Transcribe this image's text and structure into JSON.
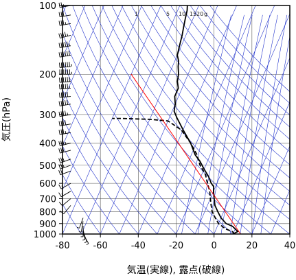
{
  "chart_data": {
    "type": "line",
    "title": "",
    "xlabel": "気温(実線), 露点(破線)",
    "ylabel": "気圧(hPa)",
    "xlim": [
      -80,
      40
    ],
    "ylim": [
      1000,
      100
    ],
    "y_scale": "log",
    "xticks": [
      "-80",
      "-60",
      "-40",
      "-20",
      "0",
      "20",
      "40"
    ],
    "yticks": [
      "100",
      "200",
      "300",
      "400",
      "500",
      "600",
      "700",
      "800",
      "900",
      "1000"
    ],
    "mixing_ratio_labels": [
      "1",
      "5",
      "10",
      "15",
      "20",
      "g"
    ],
    "grid": true,
    "series": [
      {
        "kind": "temperature",
        "line_style": "solid",
        "color": "#000000",
        "points": [
          [
            10,
            1000
          ],
          [
            12,
            975
          ],
          [
            10,
            950
          ],
          [
            8,
            925
          ],
          [
            4,
            900
          ],
          [
            0,
            850
          ],
          [
            -3,
            800
          ],
          [
            -6,
            750
          ],
          [
            -8,
            700
          ],
          [
            -10,
            650
          ],
          [
            -11,
            620
          ],
          [
            -13,
            600
          ],
          [
            -16,
            560
          ],
          [
            -20,
            520
          ],
          [
            -24,
            480
          ],
          [
            -28,
            450
          ],
          [
            -33,
            400
          ],
          [
            -40,
            350
          ],
          [
            -46,
            310
          ],
          [
            -49,
            290
          ],
          [
            -50,
            270
          ],
          [
            -52,
            250
          ],
          [
            -52,
            230
          ],
          [
            -54,
            215
          ],
          [
            -55,
            200
          ],
          [
            -57,
            185
          ],
          [
            -58,
            175
          ],
          [
            -60,
            165
          ],
          [
            -61,
            150
          ],
          [
            -62,
            135
          ],
          [
            -63,
            125
          ],
          [
            -64,
            115
          ],
          [
            -65,
            105
          ],
          [
            -66,
            100
          ]
        ]
      },
      {
        "kind": "dewpoint",
        "line_style": "dashed",
        "color": "#000000",
        "points": [
          [
            11,
            1000
          ],
          [
            9,
            975
          ],
          [
            5,
            950
          ],
          [
            0,
            900
          ],
          [
            -3,
            850
          ],
          [
            -6,
            800
          ],
          [
            -8,
            750
          ],
          [
            -10,
            700
          ],
          [
            -12,
            650
          ],
          [
            -15,
            600
          ],
          [
            -18,
            550
          ],
          [
            -23,
            500
          ],
          [
            -27,
            450
          ],
          [
            -33,
            400
          ],
          [
            -41,
            350
          ],
          [
            -50,
            320
          ],
          [
            -60,
            315
          ],
          [
            -75,
            312
          ],
          [
            -80,
            312
          ]
        ]
      },
      {
        "kind": "parcel",
        "line_style": "solid",
        "color": "#ff0000",
        "points": [
          [
            14,
            1000
          ],
          [
            -80,
            200
          ]
        ]
      }
    ],
    "dry_adiabat_temps_at_1000": [
      -70,
      -60,
      -50,
      -40,
      -30,
      -20,
      -10,
      0,
      10,
      20,
      30,
      40,
      50,
      60,
      70,
      80,
      90,
      100,
      110,
      120,
      130,
      140,
      150
    ],
    "mixing_ratio_g_per_kg": [
      1,
      2,
      3,
      5,
      7,
      10,
      15,
      20
    ],
    "wind_barbs": [
      {
        "p": 100,
        "dir": 260,
        "speed": 25
      },
      {
        "p": 110,
        "dir": 260,
        "speed": 30
      },
      {
        "p": 120,
        "dir": 260,
        "speed": 35
      },
      {
        "p": 135,
        "dir": 255,
        "speed": 45
      },
      {
        "p": 150,
        "dir": 260,
        "speed": 55
      },
      {
        "p": 165,
        "dir": 260,
        "speed": 60
      },
      {
        "p": 185,
        "dir": 265,
        "speed": 65
      },
      {
        "p": 200,
        "dir": 270,
        "speed": 65
      },
      {
        "p": 215,
        "dir": 265,
        "speed": 60
      },
      {
        "p": 230,
        "dir": 265,
        "speed": 55
      },
      {
        "p": 250,
        "dir": 265,
        "speed": 50
      },
      {
        "p": 270,
        "dir": 260,
        "speed": 50
      },
      {
        "p": 300,
        "dir": 260,
        "speed": 45
      },
      {
        "p": 330,
        "dir": 260,
        "speed": 40
      },
      {
        "p": 360,
        "dir": 260,
        "speed": 35
      },
      {
        "p": 400,
        "dir": 255,
        "speed": 35
      },
      {
        "p": 430,
        "dir": 255,
        "speed": 30
      },
      {
        "p": 470,
        "dir": 250,
        "speed": 30
      },
      {
        "p": 500,
        "dir": 250,
        "speed": 25
      },
      {
        "p": 530,
        "dir": 250,
        "speed": 20
      },
      {
        "p": 600,
        "dir": 240,
        "speed": 15
      },
      {
        "p": 650,
        "dir": 240,
        "speed": 15
      },
      {
        "p": 700,
        "dir": 230,
        "speed": 10
      },
      {
        "p": 750,
        "dir": 220,
        "speed": 10
      },
      {
        "p": 850,
        "dir": 200,
        "speed": 5
      },
      {
        "p": 880,
        "dir": 190,
        "speed": 5
      },
      {
        "p": 920,
        "dir": 180,
        "speed": 5
      },
      {
        "p": 950,
        "dir": 170,
        "speed": 5
      },
      {
        "p": 975,
        "dir": 160,
        "speed": 5
      },
      {
        "p": 1000,
        "dir": 150,
        "speed": 5
      }
    ]
  }
}
